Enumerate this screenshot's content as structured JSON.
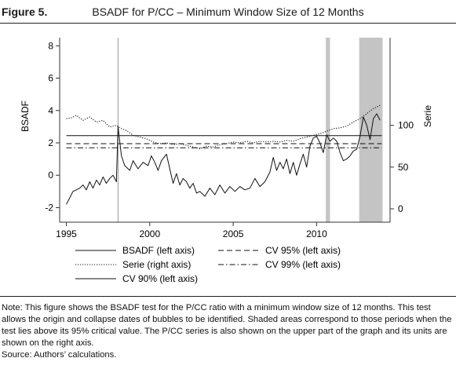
{
  "figure": {
    "label": "Figure 5.",
    "title": "BSADF for P/CC – Minimum Window Size of 12 Months"
  },
  "chart_data": {
    "type": "line",
    "xlim": [
      1994.6,
      2014.4
    ],
    "y_left": {
      "label": "BSADF",
      "lim": [
        -2.9,
        8.5
      ],
      "ticks": [
        -2,
        0,
        2,
        4,
        6,
        8
      ]
    },
    "y_right": {
      "label": "Serie",
      "lim": [
        -16,
        205
      ],
      "ticks": [
        0,
        50,
        100
      ]
    },
    "x_ticks": [
      1995,
      2000,
      2005,
      2010
    ],
    "grid": false,
    "shaded_periods": [
      [
        2010.55,
        2010.8
      ],
      [
        2012.55,
        2013.95
      ]
    ],
    "vertical_line": 1998.1,
    "series": [
      {
        "name": "BSADF (left axis)",
        "axis": "left",
        "style": "solid",
        "x": [
          1995.0,
          1995.2,
          1995.4,
          1995.6,
          1995.8,
          1996.0,
          1996.2,
          1996.4,
          1996.6,
          1996.8,
          1997.0,
          1997.2,
          1997.4,
          1997.6,
          1997.8,
          1998.0,
          1998.1,
          1998.3,
          1998.5,
          1998.8,
          1999.0,
          1999.3,
          1999.6,
          1999.9,
          2000.1,
          2000.3,
          2000.5,
          2000.7,
          2001.0,
          2001.2,
          2001.4,
          2001.6,
          2001.8,
          2002.0,
          2002.2,
          2002.4,
          2002.6,
          2002.8,
          2003.0,
          2003.3,
          2003.6,
          2003.9,
          2004.2,
          2004.5,
          2004.8,
          2005.1,
          2005.4,
          2005.7,
          2006.0,
          2006.3,
          2006.6,
          2006.9,
          2007.2,
          2007.4,
          2007.6,
          2007.8,
          2008.0,
          2008.2,
          2008.4,
          2008.6,
          2008.8,
          2009.0,
          2009.2,
          2009.4,
          2009.6,
          2009.8,
          2010.0,
          2010.2,
          2010.4,
          2010.6,
          2010.8,
          2011.0,
          2011.2,
          2011.4,
          2011.6,
          2011.8,
          2012.0,
          2012.2,
          2012.4,
          2012.6,
          2012.8,
          2013.0,
          2013.2,
          2013.4,
          2013.6,
          2013.8
        ],
        "y": [
          -1.8,
          -1.4,
          -1.0,
          -0.9,
          -0.8,
          -0.6,
          -0.9,
          -0.4,
          -0.8,
          -0.3,
          -0.6,
          -0.1,
          -0.5,
          -0.2,
          0.0,
          -0.4,
          3.0,
          1.2,
          0.6,
          0.3,
          0.9,
          0.4,
          0.8,
          0.6,
          1.2,
          0.8,
          0.3,
          0.9,
          1.3,
          0.4,
          -0.5,
          0.1,
          -0.6,
          -0.2,
          -0.4,
          -0.8,
          -0.5,
          -1.1,
          -1.0,
          -1.3,
          -0.8,
          -1.2,
          -0.6,
          -1.1,
          -0.7,
          -1.0,
          -0.7,
          -0.9,
          -0.8,
          -0.2,
          -0.7,
          -0.4,
          0.2,
          1.1,
          0.3,
          0.8,
          0.4,
          1.0,
          0.1,
          0.8,
          0.0,
          0.7,
          1.3,
          0.5,
          1.8,
          2.3,
          2.4,
          2.0,
          1.4,
          2.5,
          2.1,
          2.3,
          2.1,
          1.4,
          0.9,
          1.0,
          1.2,
          1.5,
          1.6,
          2.4,
          3.6,
          3.1,
          2.2,
          3.5,
          3.8,
          3.4
        ]
      },
      {
        "name": "Serie (right axis)",
        "axis": "right",
        "style": "dotted",
        "x": [
          1995.0,
          1995.3,
          1995.6,
          1996.0,
          1996.4,
          1996.8,
          1997.2,
          1997.6,
          1998.0,
          1998.3,
          1998.6,
          1999.0,
          1999.4,
          1999.8,
          2000.2,
          2000.6,
          2001.0,
          2001.4,
          2001.8,
          2002.2,
          2002.6,
          2003.0,
          2003.4,
          2003.8,
          2004.2,
          2004.6,
          2005.0,
          2005.4,
          2005.8,
          2006.2,
          2006.6,
          2007.0,
          2007.4,
          2007.8,
          2008.2,
          2008.6,
          2009.0,
          2009.4,
          2009.8,
          2010.2,
          2010.6,
          2011.0,
          2011.4,
          2011.8,
          2012.2,
          2012.6,
          2013.0,
          2013.4,
          2013.8
        ],
        "y": [
          108,
          109,
          112,
          106,
          110,
          104,
          106,
          98,
          100,
          96,
          94,
          88,
          86,
          84,
          80,
          78,
          79,
          77,
          78,
          76,
          74,
          72,
          75,
          74,
          77,
          78,
          80,
          79,
          81,
          79,
          81,
          80,
          81,
          80,
          82,
          81,
          84,
          86,
          88,
          90,
          93,
          96,
          97,
          99,
          104,
          108,
          114,
          120,
          124
        ]
      },
      {
        "name": "CV 90% (left axis)",
        "axis": "left",
        "style": "solid",
        "x": [
          1995.0,
          2013.9
        ],
        "y": [
          2.45,
          2.45
        ]
      },
      {
        "name": "CV 95% (left axis)",
        "axis": "left",
        "style": "dashed",
        "x": [
          1995.0,
          2013.9
        ],
        "y": [
          1.95,
          1.95
        ]
      },
      {
        "name": "CV 99% (left axis)",
        "axis": "left",
        "style": "dashdot",
        "x": [
          1995.0,
          2013.9
        ],
        "y": [
          1.7,
          1.7
        ]
      }
    ]
  },
  "note": {
    "text": "Note: This figure shows the BSADF test for the P/CC ratio with a minimum window size of 12 months. This test allows the origin and collapse dates of bubbles to be identified. Shaded areas correspond to those periods when the test lies above its 95% critical value. The P/CC series is also shown on the upper part of the graph and its units are shown on the right axis.",
    "source": "Source: Authors’ calculations."
  }
}
